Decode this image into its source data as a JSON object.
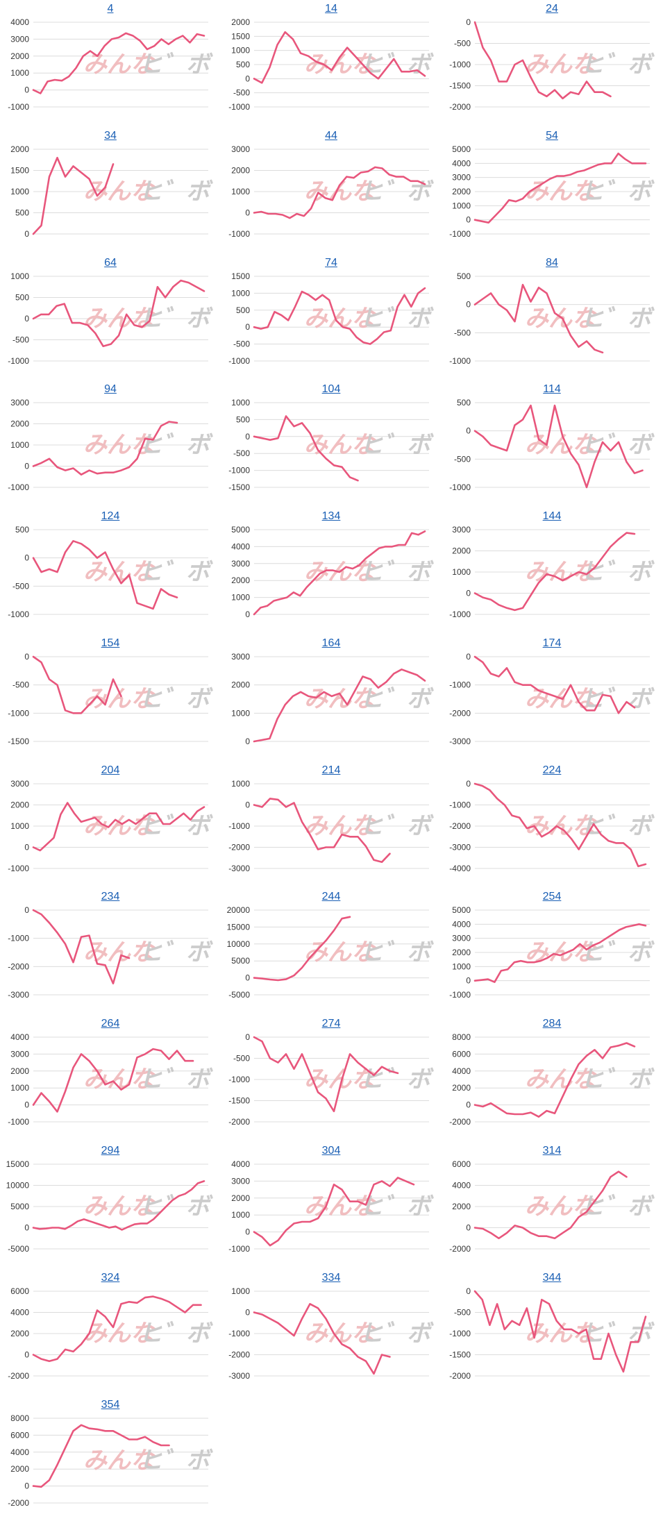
{
  "colors": {
    "line": "#e8567c",
    "grid": "#dcdcdc",
    "tick": "#333333",
    "title": "#1a5fb4",
    "wm_pink": "#efb3b6",
    "wm_gray": "#c4c4c4"
  },
  "watermark": {
    "text_a": "みんな",
    "text_b": "ヒ゛ボ"
  },
  "chart_data": [
    {
      "type": "line",
      "title": "4",
      "ylim": [
        -1000,
        4000
      ],
      "yticks": [
        -1000,
        0,
        1000,
        2000,
        3000,
        4000
      ],
      "values": [
        0,
        -200,
        500,
        600,
        550,
        800,
        1300,
        2000,
        2300,
        2000,
        2600,
        3000,
        3100,
        3350,
        3200,
        2900,
        2400,
        2600,
        3000,
        2700,
        3000,
        3200,
        2800,
        3300,
        3200
      ]
    },
    {
      "type": "line",
      "title": "14",
      "ylim": [
        -1000,
        2000
      ],
      "yticks": [
        -1000,
        -500,
        0,
        500,
        1000,
        1500,
        2000
      ],
      "values": [
        0,
        -150,
        400,
        1200,
        1650,
        1400,
        900,
        800,
        600,
        500,
        300,
        750,
        1100,
        800,
        500,
        200,
        0,
        350,
        700,
        250,
        250,
        300,
        100
      ]
    },
    {
      "type": "line",
      "title": "24",
      "ylim": [
        -2000,
        0
      ],
      "yticks": [
        -2000,
        -1500,
        -1000,
        -500,
        0
      ],
      "values": [
        0,
        -600,
        -900,
        -1400,
        -1400,
        -1000,
        -900,
        -1300,
        -1650,
        -1750,
        -1600,
        -1800,
        -1650,
        -1700,
        -1400,
        -1650,
        -1650,
        -1750
      ]
    },
    {
      "type": "line",
      "title": "34",
      "ylim": [
        0,
        2000
      ],
      "yticks": [
        0,
        500,
        1000,
        1500,
        2000
      ],
      "values": [
        0,
        200,
        1350,
        1800,
        1350,
        1600,
        1450,
        1300,
        900,
        1100,
        1650
      ]
    },
    {
      "type": "line",
      "title": "44",
      "ylim": [
        -1000,
        3000
      ],
      "yticks": [
        -1000,
        0,
        1000,
        2000,
        3000
      ],
      "values": [
        0,
        50,
        -50,
        -50,
        -100,
        -250,
        -50,
        -150,
        200,
        950,
        700,
        600,
        1300,
        1700,
        1650,
        1900,
        1950,
        2150,
        2100,
        1800,
        1700,
        1700,
        1500,
        1500,
        1350
      ]
    },
    {
      "type": "line",
      "title": "54",
      "ylim": [
        -1000,
        5000
      ],
      "yticks": [
        -1000,
        0,
        1000,
        2000,
        3000,
        4000,
        5000
      ],
      "values": [
        0,
        -100,
        -200,
        300,
        800,
        1400,
        1300,
        1500,
        2000,
        2300,
        2600,
        2900,
        3100,
        3100,
        3200,
        3400,
        3500,
        3700,
        3900,
        4000,
        4000,
        4700,
        4300,
        4000,
        4000,
        4000
      ]
    },
    {
      "type": "line",
      "title": "64",
      "ylim": [
        -1000,
        1000
      ],
      "yticks": [
        -1000,
        -500,
        0,
        500,
        1000
      ],
      "values": [
        0,
        100,
        100,
        300,
        350,
        -100,
        -100,
        -150,
        -350,
        -650,
        -600,
        -400,
        100,
        -150,
        -200,
        -50,
        750,
        500,
        750,
        900,
        850,
        750,
        650
      ]
    },
    {
      "type": "line",
      "title": "74",
      "ylim": [
        -1000,
        1500
      ],
      "yticks": [
        -1000,
        -500,
        0,
        500,
        1000,
        1500
      ],
      "values": [
        0,
        -50,
        0,
        450,
        350,
        200,
        600,
        1050,
        950,
        800,
        950,
        800,
        200,
        0,
        -50,
        -300,
        -450,
        -500,
        -350,
        -150,
        -100,
        600,
        950,
        600,
        1000,
        1150
      ]
    },
    {
      "type": "line",
      "title": "84",
      "ylim": [
        -1000,
        500
      ],
      "yticks": [
        -1000,
        -500,
        0,
        500
      ],
      "values": [
        0,
        100,
        200,
        0,
        -100,
        -300,
        350,
        50,
        300,
        200,
        -150,
        -250,
        -550,
        -750,
        -650,
        -800,
        -850
      ]
    },
    {
      "type": "line",
      "title": "94",
      "ylim": [
        -1000,
        3000
      ],
      "yticks": [
        -1000,
        0,
        1000,
        2000,
        3000
      ],
      "values": [
        0,
        150,
        350,
        -50,
        -200,
        -100,
        -400,
        -200,
        -350,
        -300,
        -300,
        -200,
        -50,
        350,
        1300,
        1250,
        1900,
        2100,
        2050
      ]
    },
    {
      "type": "line",
      "title": "104",
      "ylim": [
        -1500,
        1000
      ],
      "yticks": [
        -1500,
        -1000,
        -500,
        0,
        500,
        1000
      ],
      "values": [
        0,
        -50,
        -100,
        -50,
        600,
        300,
        400,
        100,
        -400,
        -650,
        -850,
        -900,
        -1200,
        -1300
      ]
    },
    {
      "type": "line",
      "title": "114",
      "ylim": [
        -1000,
        500
      ],
      "yticks": [
        -1000,
        -500,
        0,
        500
      ],
      "values": [
        0,
        -100,
        -250,
        -300,
        -350,
        100,
        200,
        450,
        -150,
        -250,
        450,
        -100,
        -400,
        -600,
        -1000,
        -550,
        -200,
        -350,
        -200,
        -550,
        -750,
        -700
      ]
    },
    {
      "type": "line",
      "title": "124",
      "ylim": [
        -1000,
        500
      ],
      "yticks": [
        -1000,
        -500,
        0,
        500
      ],
      "values": [
        0,
        -250,
        -200,
        -250,
        100,
        300,
        250,
        150,
        0,
        100,
        -200,
        -450,
        -300,
        -800,
        -850,
        -900,
        -550,
        -650,
        -700
      ]
    },
    {
      "type": "line",
      "title": "134",
      "ylim": [
        0,
        5000
      ],
      "yticks": [
        0,
        1000,
        2000,
        3000,
        4000,
        5000
      ],
      "values": [
        0,
        400,
        500,
        800,
        900,
        1000,
        1300,
        1100,
        1600,
        2000,
        2400,
        2600,
        2600,
        2500,
        2800,
        2700,
        2900,
        3300,
        3600,
        3900,
        4000,
        4000,
        4100,
        4100,
        4800,
        4700,
        4900
      ]
    },
    {
      "type": "line",
      "title": "144",
      "ylim": [
        -1000,
        3000
      ],
      "yticks": [
        -1000,
        0,
        1000,
        2000,
        3000
      ],
      "values": [
        0,
        -200,
        -300,
        -550,
        -700,
        -800,
        -700,
        -100,
        500,
        900,
        800,
        600,
        800,
        1000,
        900,
        1200,
        1700,
        2200,
        2550,
        2850,
        2800
      ]
    },
    {
      "type": "line",
      "title": "154",
      "ylim": [
        -1500,
        0
      ],
      "yticks": [
        -1500,
        -1000,
        -500,
        0
      ],
      "values": [
        0,
        -100,
        -400,
        -500,
        -950,
        -1000,
        -1000,
        -850,
        -700,
        -850,
        -400,
        -700
      ]
    },
    {
      "type": "line",
      "title": "164",
      "ylim": [
        0,
        3000
      ],
      "yticks": [
        0,
        1000,
        2000,
        3000
      ],
      "values": [
        0,
        50,
        100,
        800,
        1300,
        1600,
        1750,
        1600,
        1550,
        1750,
        1600,
        1700,
        1300,
        1800,
        2300,
        2200,
        1900,
        2100,
        2400,
        2550,
        2450,
        2350,
        2150
      ]
    },
    {
      "type": "line",
      "title": "174",
      "ylim": [
        -3000,
        0
      ],
      "yticks": [
        -3000,
        -2000,
        -1000,
        0
      ],
      "values": [
        0,
        -200,
        -600,
        -700,
        -400,
        -900,
        -1000,
        -1000,
        -1200,
        -1300,
        -1400,
        -1500,
        -1000,
        -1600,
        -1900,
        -1900,
        -1350,
        -1400,
        -2000,
        -1600,
        -1800
      ]
    },
    {
      "type": "line",
      "title": "204",
      "ylim": [
        -1000,
        3000
      ],
      "yticks": [
        -1000,
        0,
        1000,
        2000,
        3000
      ],
      "values": [
        0,
        -150,
        150,
        450,
        1550,
        2100,
        1600,
        1200,
        1300,
        1400,
        1100,
        950,
        1300,
        1100,
        1300,
        1100,
        1350,
        1600,
        1600,
        1100,
        1100,
        1350,
        1600,
        1300,
        1700,
        1900
      ]
    },
    {
      "type": "line",
      "title": "214",
      "ylim": [
        -3000,
        1000
      ],
      "yticks": [
        -3000,
        -2000,
        -1000,
        0,
        1000
      ],
      "values": [
        0,
        -100,
        300,
        250,
        -100,
        100,
        -800,
        -1400,
        -2100,
        -2000,
        -2000,
        -1400,
        -1500,
        -1500,
        -1950,
        -2600,
        -2700,
        -2300
      ]
    },
    {
      "type": "line",
      "title": "224",
      "ylim": [
        -4000,
        0
      ],
      "yticks": [
        -4000,
        -3000,
        -2000,
        -1000,
        0
      ],
      "values": [
        0,
        -100,
        -300,
        -700,
        -1000,
        -1500,
        -1600,
        -2100,
        -2000,
        -2500,
        -2300,
        -2000,
        -2200,
        -2600,
        -3100,
        -2500,
        -1900,
        -2400,
        -2700,
        -2800,
        -2800,
        -3100,
        -3900,
        -3800
      ]
    },
    {
      "type": "line",
      "title": "234",
      "ylim": [
        -3000,
        0
      ],
      "yticks": [
        -3000,
        -2000,
        -1000,
        0
      ],
      "values": [
        0,
        -150,
        -450,
        -800,
        -1200,
        -1850,
        -950,
        -900,
        -1900,
        -1950,
        -2600,
        -1600,
        -1700
      ]
    },
    {
      "type": "line",
      "title": "244",
      "ylim": [
        -5000,
        20000
      ],
      "yticks": [
        -5000,
        0,
        5000,
        10000,
        15000,
        20000
      ],
      "values": [
        0,
        -200,
        -500,
        -700,
        -400,
        700,
        3000,
        6000,
        8500,
        11000,
        14000,
        17500,
        18000
      ]
    },
    {
      "type": "line",
      "title": "254",
      "ylim": [
        -1000,
        5000
      ],
      "yticks": [
        -1000,
        0,
        1000,
        2000,
        3000,
        4000,
        5000
      ],
      "values": [
        0,
        50,
        100,
        -100,
        700,
        800,
        1300,
        1400,
        1300,
        1300,
        1400,
        1600,
        1900,
        1800,
        2000,
        2200,
        2600,
        2200,
        2500,
        2700,
        3000,
        3300,
        3600,
        3800,
        3900,
        4000,
        3900
      ]
    },
    {
      "type": "line",
      "title": "264",
      "ylim": [
        -1000,
        4000
      ],
      "yticks": [
        -1000,
        0,
        1000,
        2000,
        3000,
        4000
      ],
      "values": [
        0,
        700,
        200,
        -400,
        800,
        2200,
        3000,
        2600,
        2000,
        1200,
        1400,
        900,
        1200,
        2800,
        3000,
        3300,
        3200,
        2700,
        3200,
        2600,
        2600
      ]
    },
    {
      "type": "line",
      "title": "274",
      "ylim": [
        -2000,
        0
      ],
      "yticks": [
        -2000,
        -1500,
        -1000,
        -500,
        0
      ],
      "values": [
        0,
        -100,
        -500,
        -600,
        -400,
        -750,
        -400,
        -850,
        -1300,
        -1450,
        -1750,
        -1000,
        -400,
        -600,
        -750,
        -900,
        -700,
        -800,
        -850
      ]
    },
    {
      "type": "line",
      "title": "284",
      "ylim": [
        -2000,
        8000
      ],
      "yticks": [
        -2000,
        0,
        2000,
        4000,
        6000,
        8000
      ],
      "values": [
        0,
        -200,
        200,
        -400,
        -1000,
        -1100,
        -1100,
        -900,
        -1400,
        -700,
        -1000,
        1000,
        3000,
        4800,
        5800,
        6500,
        5500,
        6800,
        7000,
        7300,
        6900
      ]
    },
    {
      "type": "line",
      "title": "294",
      "ylim": [
        -5000,
        15000
      ],
      "yticks": [
        -5000,
        0,
        5000,
        10000,
        15000
      ],
      "values": [
        0,
        -300,
        -200,
        0,
        0,
        -300,
        500,
        1500,
        2000,
        1500,
        1000,
        500,
        0,
        300,
        -500,
        200,
        800,
        1000,
        1000,
        2000,
        3500,
        5000,
        6500,
        7500,
        8000,
        9000,
        10500,
        11000
      ]
    },
    {
      "type": "line",
      "title": "304",
      "ylim": [
        -1000,
        4000
      ],
      "yticks": [
        -1000,
        0,
        1000,
        2000,
        3000,
        4000
      ],
      "values": [
        0,
        -300,
        -800,
        -500,
        100,
        500,
        600,
        600,
        800,
        1500,
        2800,
        2500,
        1800,
        1800,
        1600,
        2800,
        3000,
        2700,
        3200,
        3000,
        2800
      ]
    },
    {
      "type": "line",
      "title": "314",
      "ylim": [
        -2000,
        6000
      ],
      "yticks": [
        -2000,
        0,
        2000,
        4000,
        6000
      ],
      "values": [
        0,
        -100,
        -500,
        -1000,
        -500,
        200,
        0,
        -500,
        -800,
        -800,
        -1000,
        -500,
        0,
        1000,
        1500,
        2500,
        3500,
        4800,
        5300,
        4800
      ]
    },
    {
      "type": "line",
      "title": "324",
      "ylim": [
        -2000,
        6000
      ],
      "yticks": [
        -2000,
        0,
        2000,
        4000,
        6000
      ],
      "values": [
        0,
        -400,
        -600,
        -400,
        500,
        300,
        1000,
        2000,
        4200,
        3600,
        2600,
        4800,
        5000,
        4900,
        5400,
        5500,
        5300,
        5000,
        4500,
        4000,
        4700,
        4700
      ]
    },
    {
      "type": "line",
      "title": "334",
      "ylim": [
        -3000,
        1000
      ],
      "yticks": [
        -3000,
        -2000,
        -1000,
        0,
        1000
      ],
      "values": [
        0,
        -100,
        -300,
        -500,
        -800,
        -1100,
        -300,
        400,
        200,
        -300,
        -1000,
        -1500,
        -1700,
        -2100,
        -2300,
        -2900,
        -2000,
        -2100
      ]
    },
    {
      "type": "line",
      "title": "344",
      "ylim": [
        -2000,
        0
      ],
      "yticks": [
        -2000,
        -1500,
        -1000,
        -500,
        0
      ],
      "values": [
        0,
        -200,
        -800,
        -300,
        -900,
        -700,
        -800,
        -400,
        -1100,
        -200,
        -300,
        -700,
        -900,
        -900,
        -1000,
        -900,
        -1600,
        -1600,
        -1000,
        -1500,
        -1900,
        -1200,
        -1200,
        -600
      ]
    },
    {
      "type": "line",
      "title": "354",
      "ylim": [
        -2000,
        8000
      ],
      "yticks": [
        -2000,
        0,
        2000,
        4000,
        6000,
        8000
      ],
      "values": [
        0,
        -100,
        700,
        2500,
        4500,
        6500,
        7200,
        6800,
        6700,
        6500,
        6500,
        6000,
        5500,
        5500,
        5800,
        5200,
        4800,
        4800
      ]
    }
  ]
}
